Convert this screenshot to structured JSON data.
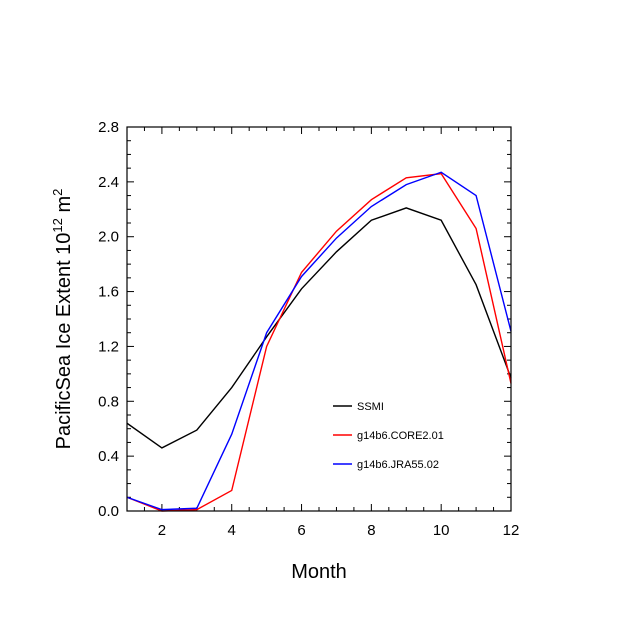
{
  "chart_data": {
    "type": "line",
    "title": "",
    "xlabel": "Month",
    "ylabel_main": "PacificSea Ice Extent 10",
    "ylabel_exp": "12",
    "ylabel_unit": " m",
    "ylabel_unit_exp": "2",
    "xlim": [
      1,
      12
    ],
    "ylim": [
      0,
      2.8
    ],
    "x_ticks": [
      2,
      4,
      6,
      8,
      10,
      12
    ],
    "y_ticks": [
      "0.0",
      "0.4",
      "0.8",
      "1.2",
      "1.6",
      "2.0",
      "2.4",
      "2.8"
    ],
    "y_tick_values": [
      0,
      0.4,
      0.8,
      1.2,
      1.6,
      2.0,
      2.4,
      2.8
    ],
    "x": [
      1,
      2,
      3,
      4,
      5,
      6,
      7,
      8,
      9,
      10,
      11,
      12
    ],
    "series": [
      {
        "name": "SSMI",
        "color": "#000000",
        "values": [
          0.64,
          0.46,
          0.59,
          0.9,
          1.27,
          1.62,
          1.89,
          2.12,
          2.21,
          2.12,
          1.65,
          0.97
        ]
      },
      {
        "name": "g14b6.CORE2.01",
        "color": "#ff0000",
        "values": [
          0.1,
          0.0,
          0.01,
          0.15,
          1.2,
          1.74,
          2.04,
          2.27,
          2.43,
          2.46,
          2.06,
          0.93
        ]
      },
      {
        "name": "g14b6.JRA55.02",
        "color": "#0000ff",
        "values": [
          0.1,
          0.01,
          0.02,
          0.56,
          1.3,
          1.71,
          1.99,
          2.22,
          2.38,
          2.47,
          2.3,
          1.31
        ]
      }
    ],
    "legend_position": "lower-right",
    "grid": false
  }
}
